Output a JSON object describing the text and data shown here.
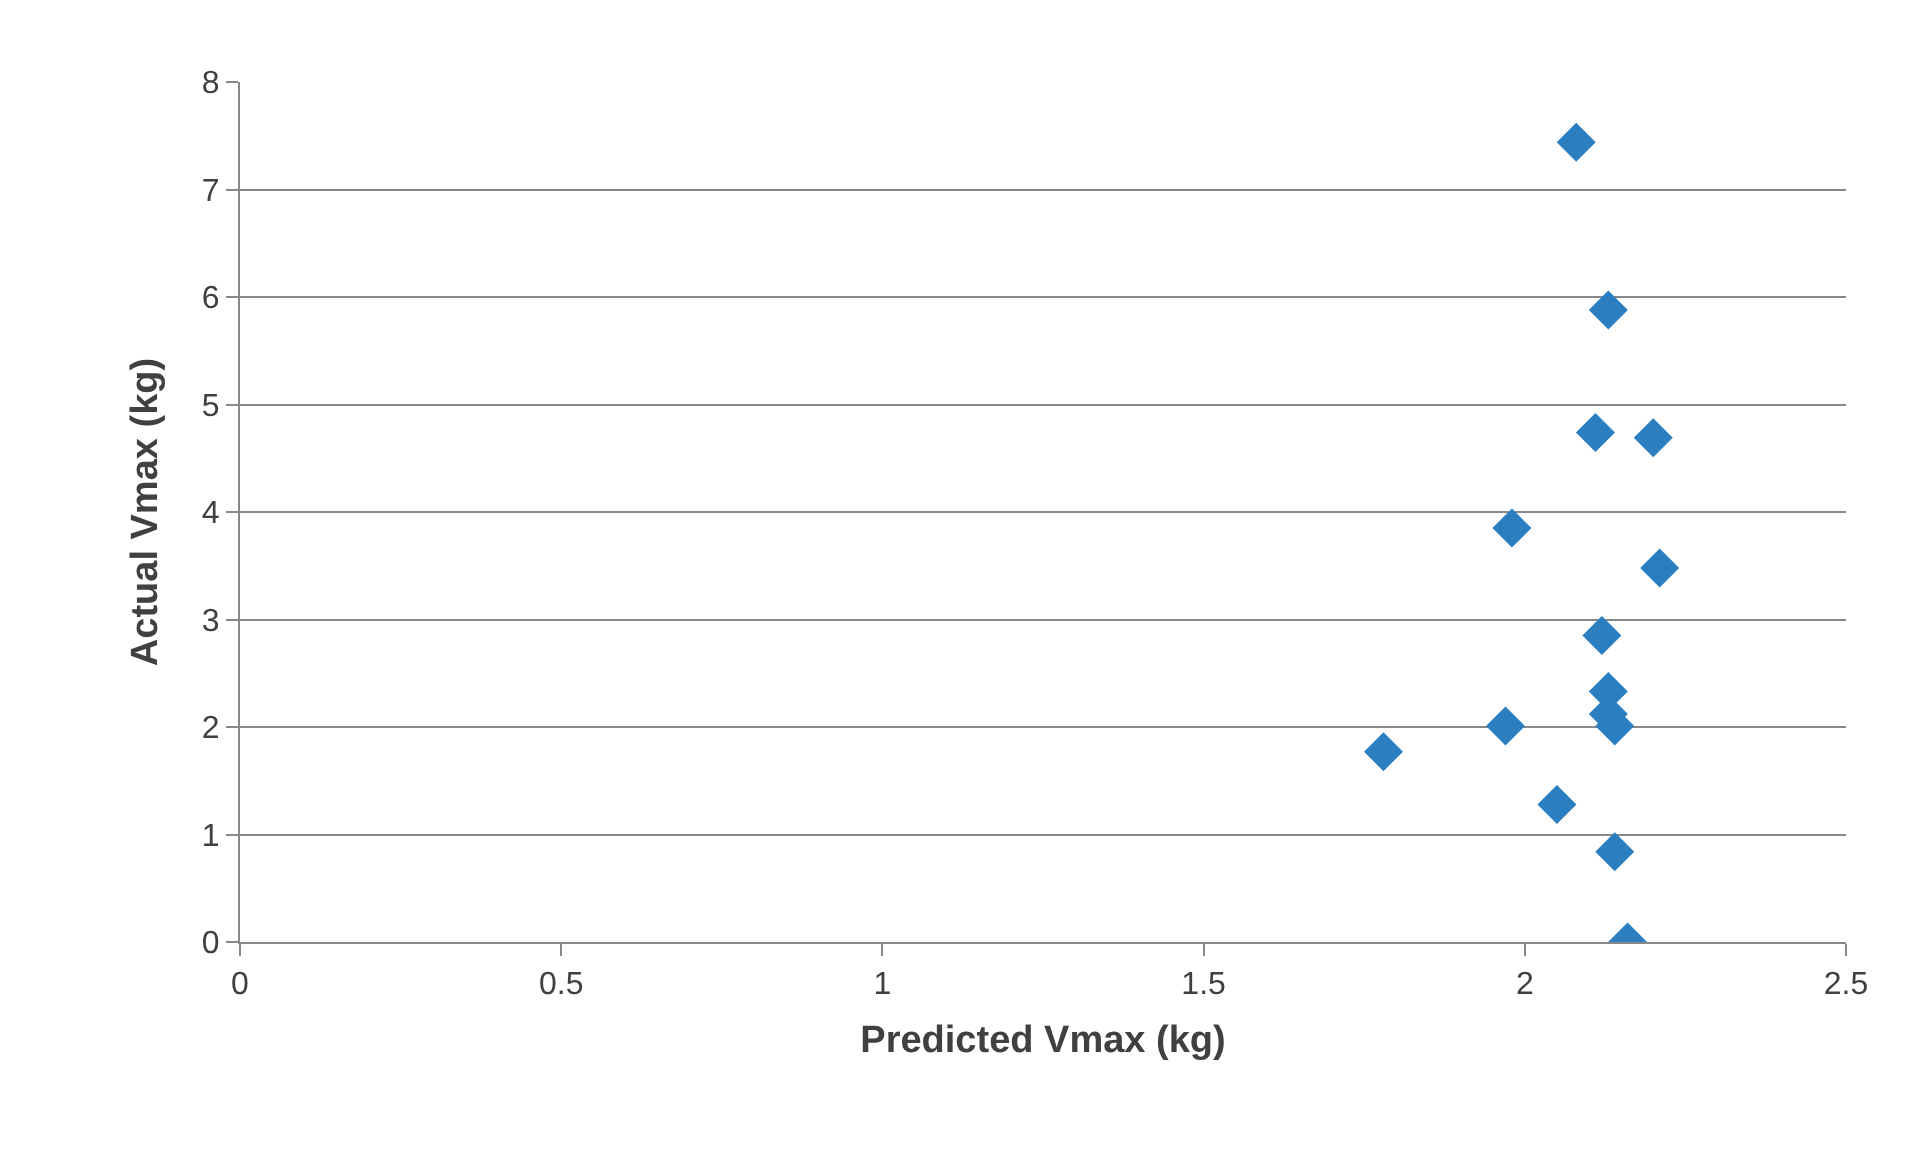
{
  "chart_data": {
    "type": "scatter",
    "xlabel": "Predicted Vmax (kg)",
    "ylabel": "Actual Vmax (kg)",
    "x": [
      2.08,
      2.13,
      2.11,
      2.2,
      1.98,
      2.21,
      2.12,
      2.13,
      2.13,
      2.14,
      1.97,
      1.78,
      2.05,
      2.14,
      2.16
    ],
    "values": [
      7.44,
      5.88,
      4.74,
      4.69,
      3.85,
      3.48,
      2.85,
      2.33,
      2.12,
      2.01,
      2.01,
      1.77,
      1.28,
      0.84,
      0
    ],
    "color": "#2b7fc1",
    "marker": "diamond",
    "xlim": [
      0,
      2.5
    ],
    "xticks": [
      0,
      0.5,
      1,
      1.5,
      2,
      2.5
    ],
    "ylim": [
      0,
      8
    ],
    "yticks": [
      0,
      1,
      2,
      3,
      4,
      5,
      6,
      7,
      8
    ],
    "grid": "y",
    "legend": false
  }
}
